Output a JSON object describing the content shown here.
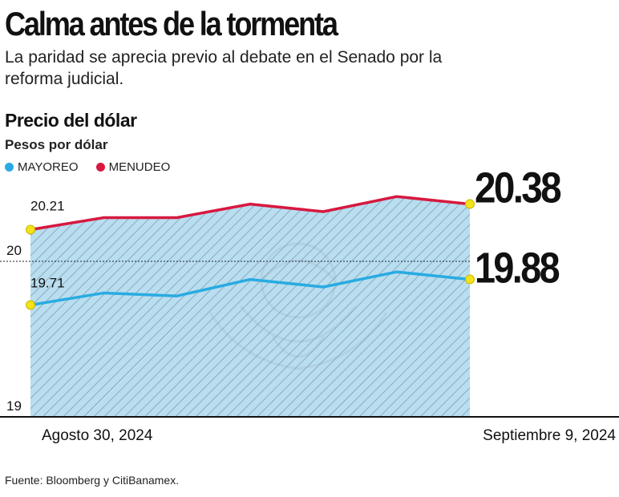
{
  "header": {
    "title": "Calma antes de la tormenta",
    "subtitle": "La paridad se aprecia previo al debate en el Senado por la reforma judicial."
  },
  "chart_header": {
    "title": "Precio del dólar",
    "unit": "Pesos por dólar"
  },
  "legend": {
    "mayoreo": "MAYOREO",
    "menudeo": "MENUDEO"
  },
  "source": "Fuente: Bloomberg y CitiBanamex.",
  "colors": {
    "mayoreo": "#29abe2",
    "menudeo": "#d7193f",
    "area_fill": "#b8def0",
    "hatch": "#7e95a6",
    "marker": "#f2e21b"
  },
  "chart_data": {
    "type": "line",
    "title": "Precio del dólar",
    "ylabel": "Pesos por dólar",
    "ylim": [
      19,
      20.4
    ],
    "reference_line": 20,
    "x_start_label": "Agosto 30, 2024",
    "x_end_label": "Septiembre 9, 2024",
    "y_tick_labels": [
      "19",
      "20"
    ],
    "series": [
      {
        "name": "MAYOREO",
        "values": [
          19.71,
          19.79,
          19.77,
          19.88,
          19.83,
          19.93,
          19.88
        ],
        "start_label": "19.71",
        "end_label": "19.88"
      },
      {
        "name": "MENUDEO",
        "values": [
          20.21,
          20.29,
          20.29,
          20.38,
          20.33,
          20.43,
          20.38
        ],
        "start_label": "20.21",
        "end_label": "20.38"
      }
    ]
  }
}
